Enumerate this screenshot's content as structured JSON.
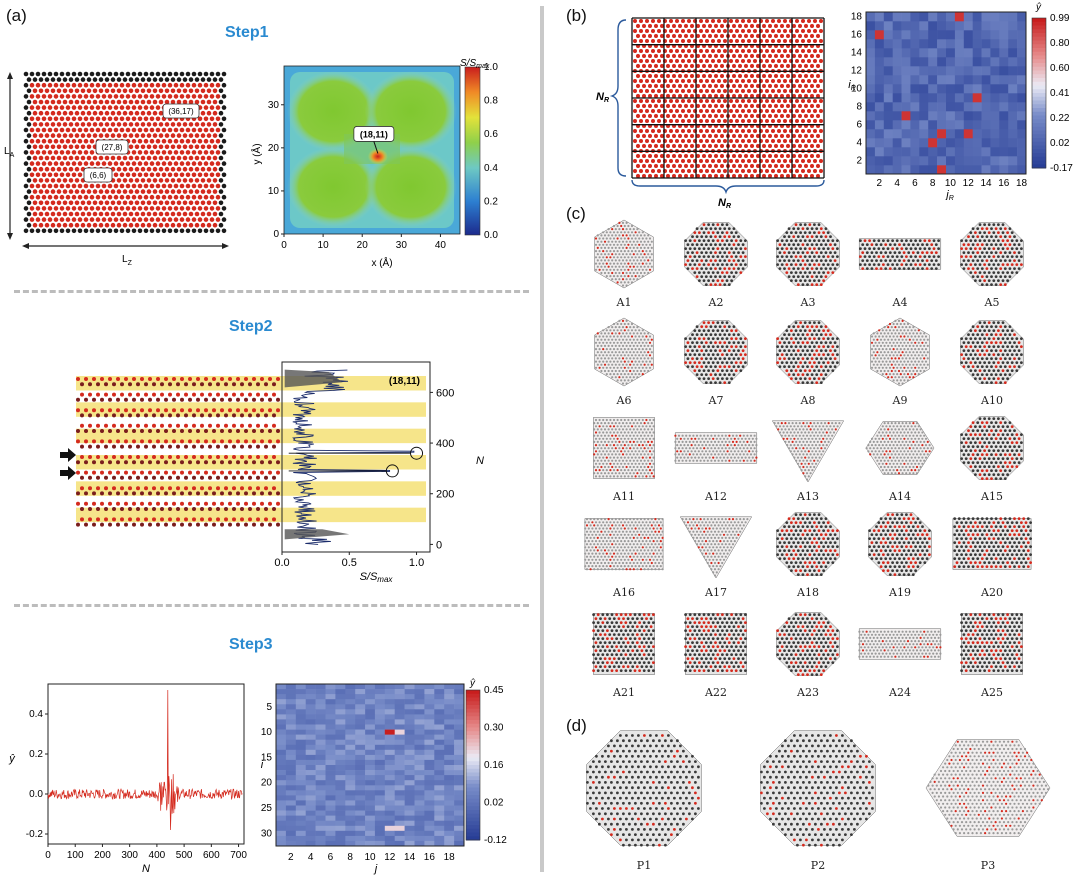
{
  "panel_labels": {
    "a": "(a)",
    "b": "(b)",
    "c": "(c)",
    "d": "(d)"
  },
  "steps": {
    "step1": "Step1",
    "step2": "Step2",
    "step3": "Step3"
  },
  "lattice": {
    "lz_label": "L",
    "lz_sub": "Z",
    "la_label": "L",
    "la_sub": "A",
    "annotations": [
      "(36,17)",
      "(27,8)",
      "(6,6)"
    ]
  },
  "colors": {
    "red_atom": "#d42a1e",
    "black_atom": "#1b1b1b",
    "accent": "#2a8ad0",
    "stripe": "#f6e58a"
  },
  "chart_data": [
    {
      "type": "heatmap",
      "name": "step1-contour",
      "xlabel": "x (Å)",
      "ylabel": "y (Å)",
      "xticks": [
        "0",
        "10",
        "20",
        "30",
        "40"
      ],
      "yticks": [
        "0",
        "10",
        "20",
        "30"
      ],
      "xlim": [
        0,
        45
      ],
      "ylim": [
        0,
        39
      ],
      "colorbar_title": "S/S",
      "colorbar_title_sub": "max",
      "colorbar_ticks": [
        "0.0",
        "0.2",
        "0.4",
        "0.6",
        "0.8",
        "1.0"
      ],
      "annotation": "(18,11)",
      "peak": {
        "x": 24,
        "y": 18
      }
    },
    {
      "type": "line",
      "name": "step2-profile",
      "xlabel": "S/S",
      "xlabel_sub": "max",
      "ylabel": "N",
      "xticks": [
        "0.0",
        "0.5",
        "1.0"
      ],
      "yticks": [
        "0",
        "200",
        "400",
        "600"
      ],
      "xlim": [
        0,
        1.1
      ],
      "ylim": [
        -30,
        720
      ],
      "annotation": "(18,11)",
      "circles": [
        {
          "x": 1.0,
          "y": 360
        },
        {
          "x": 0.82,
          "y": 290
        }
      ]
    },
    {
      "type": "line",
      "name": "step3-signal",
      "xlabel": "N",
      "ylabel": "ŷ",
      "xticks": [
        "0",
        "100",
        "200",
        "300",
        "400",
        "500",
        "600",
        "700"
      ],
      "yticks": [
        "-0.2",
        "0.0",
        "0.2",
        "0.4"
      ],
      "xlim": [
        0,
        720
      ],
      "ylim": [
        -0.25,
        0.55
      ],
      "spike": {
        "x": 440,
        "y": 0.52
      }
    },
    {
      "type": "heatmap",
      "name": "step3-heatmap",
      "xlabel": "j",
      "ylabel": "i",
      "xticks": [
        "2",
        "4",
        "6",
        "8",
        "10",
        "12",
        "14",
        "16",
        "18"
      ],
      "yticks": [
        "5",
        "10",
        "15",
        "20",
        "25",
        "30"
      ],
      "colorbar_title": "ŷ",
      "colorbar_ticks": [
        "0.45",
        "0.30",
        "0.16",
        "0.02",
        "-0.12"
      ]
    },
    {
      "type": "heatmap",
      "name": "panel-b-heatmap",
      "xlabel": "j",
      "xlabel_sub": "R",
      "ylabel": "i",
      "ylabel_sub": "R",
      "xticks": [
        "2",
        "4",
        "6",
        "8",
        "10",
        "12",
        "14",
        "16",
        "18"
      ],
      "yticks": [
        "2",
        "4",
        "6",
        "8",
        "10",
        "12",
        "14",
        "16",
        "18"
      ],
      "colorbar_title": "ŷ",
      "colorbar_ticks": [
        "0.99",
        "0.80",
        "0.60",
        "0.41",
        "0.22",
        "0.02",
        "-0.17"
      ],
      "hot_cells": [
        [
          11,
          18
        ],
        [
          2,
          16
        ],
        [
          13,
          9
        ],
        [
          5,
          7
        ],
        [
          8,
          4
        ],
        [
          9,
          5
        ],
        [
          12,
          5
        ],
        [
          9,
          1
        ]
      ]
    }
  ],
  "panel_b": {
    "nr_label": "N",
    "nr_sub": "R"
  },
  "structures_c": [
    "A1",
    "A2",
    "A3",
    "A4",
    "A5",
    "A6",
    "A7",
    "A8",
    "A9",
    "A10",
    "A11",
    "A12",
    "A13",
    "A14",
    "A15",
    "A16",
    "A17",
    "A18",
    "A19",
    "A20",
    "A21",
    "A22",
    "A23",
    "A24",
    "A25"
  ],
  "structures_d": [
    "P1",
    "P2",
    "P3"
  ]
}
